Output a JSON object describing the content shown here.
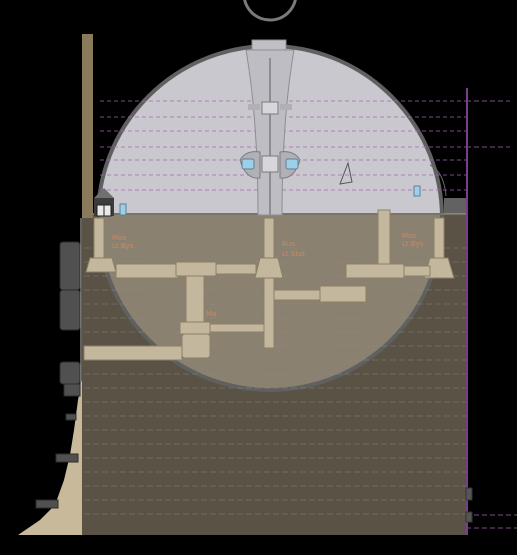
{
  "diagram": {
    "kind": "section",
    "colors": {
      "background": "#000000",
      "dome_fill": "#c9c8cf",
      "dome_rim": "#606060",
      "ground_fill": "#5a5345",
      "ground_sphere_fill": "#8a8170",
      "tunnel_fill": "#c3b79d",
      "tunnel_stroke": "#8c7f66",
      "level_line_purple": "#a766b8",
      "level_line_grey": "#8f8f8f",
      "label_color": "#e08a5a",
      "window_color": "#9ccfe8",
      "mast_color": "#8a7a5c",
      "wall_color": "#c8b99a"
    },
    "labels": []
  }
}
